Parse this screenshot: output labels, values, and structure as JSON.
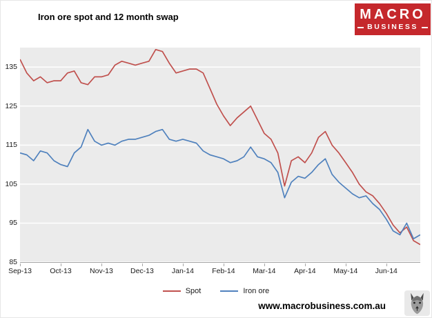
{
  "title": "Iron ore spot and 12 month swap",
  "logo": {
    "line1": "MACRO",
    "line2": "BUSINESS",
    "bg_color": "#c5282c",
    "text_color": "#ffffff"
  },
  "footer": {
    "url": "www.macrobusiness.com.au"
  },
  "chart_data": {
    "type": "line",
    "title": "Iron ore spot and 12 month swap",
    "x_tick_labels": [
      "Sep-13",
      "Oct-13",
      "Nov-13",
      "Dec-13",
      "Jan-14",
      "Feb-14",
      "Mar-14",
      "Apr-14",
      "May-14",
      "Jun-14"
    ],
    "points_per_month": 6,
    "ylim": [
      85,
      140
    ],
    "yticks": [
      85,
      95,
      105,
      115,
      125,
      135
    ],
    "panel_color": "#ebebeb",
    "gridline_color": "#ffffff",
    "grid": "horizontal",
    "legend_position": "bottom-center",
    "series": [
      {
        "name": "Spot",
        "color": "#c0504d",
        "values": [
          137,
          133.5,
          131.5,
          132.5,
          131,
          131.5,
          131.5,
          133.5,
          134,
          131,
          130.5,
          132.5,
          132.5,
          133,
          135.5,
          136.5,
          136,
          135.5,
          136,
          136.5,
          139.5,
          139,
          136,
          133.5,
          134,
          134.5,
          134.5,
          133.5,
          129.5,
          125.5,
          122.5,
          120,
          122,
          123.5,
          125,
          121.5,
          118,
          116.5,
          113,
          104.5,
          111,
          112,
          110.5,
          113,
          117,
          118.5,
          115,
          113,
          110.5,
          108,
          105,
          103,
          102,
          100,
          97.5,
          94.5,
          92.5,
          94,
          90.5,
          89.5
        ]
      },
      {
        "name": "Iron ore",
        "color": "#4f81bd",
        "values": [
          113,
          112.5,
          111,
          113.5,
          113,
          111,
          110,
          109.5,
          113,
          114.5,
          119,
          116,
          115,
          115.5,
          115,
          116,
          116.5,
          116.5,
          117,
          117.5,
          118.5,
          119,
          116.5,
          116,
          116.5,
          116,
          115.5,
          113.5,
          112.5,
          112,
          111.5,
          110.5,
          111,
          112,
          114.5,
          112,
          111.5,
          110.5,
          108,
          101.5,
          105.5,
          107,
          106.5,
          108,
          110,
          111.5,
          107.5,
          105.5,
          104,
          102.5,
          101.5,
          102,
          100,
          98.5,
          96,
          93,
          92,
          95,
          91,
          92
        ]
      }
    ]
  }
}
